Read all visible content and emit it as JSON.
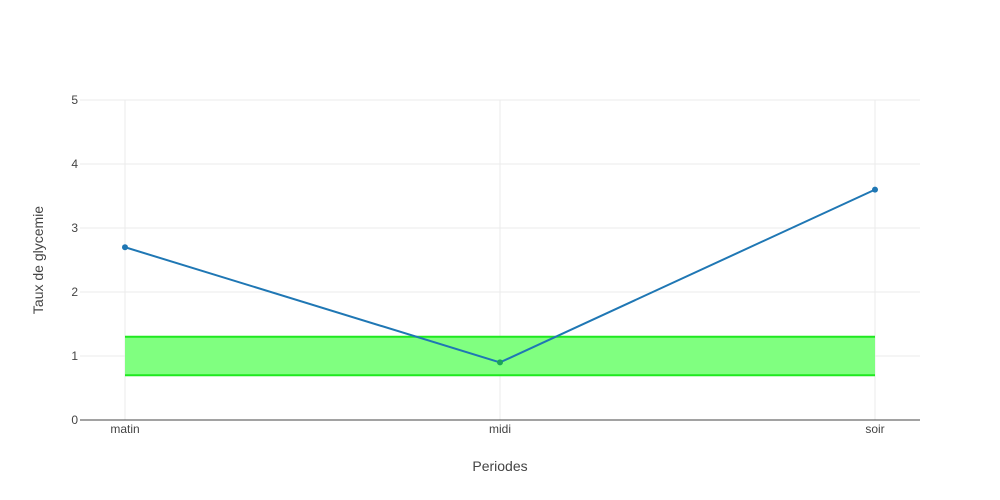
{
  "chart_data": {
    "type": "line",
    "title": "",
    "xlabel": "Periodes",
    "ylabel": "Taux de glycemie",
    "categories": [
      "matin",
      "midi",
      "soir"
    ],
    "ylim": [
      0,
      5
    ],
    "yticks": [
      0,
      1,
      2,
      3,
      4,
      5
    ],
    "grid": true,
    "legend": "none",
    "series": [
      {
        "values": [
          2.7,
          0.9,
          3.6
        ],
        "color": "#1f77b4",
        "mode": "lines+markers"
      }
    ],
    "target_band": {
      "lower": 0.7,
      "upper": 1.3,
      "fill_color": "#80ff80",
      "line_color": "#1fe81f"
    },
    "highlighted_point": {
      "category": "midi",
      "value": 0.9,
      "color": "#1aa35a"
    }
  }
}
